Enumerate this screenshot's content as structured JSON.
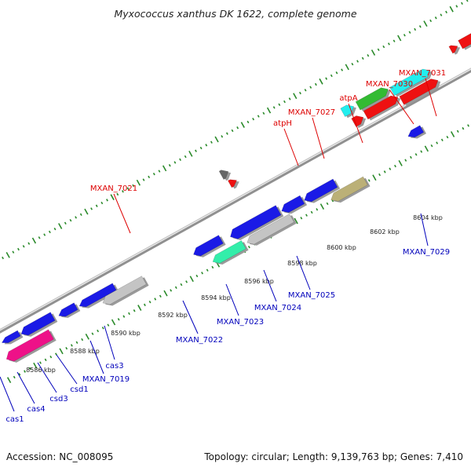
{
  "title": "Myxococcus xanthus DK 1622, complete genome",
  "footer": {
    "accession": "Accession: NC_008095",
    "summary": "Topology: circular; Length: 9,139,763 bp; Genes: 7,410"
  },
  "colors": {
    "backbone": "#909090",
    "ruler": "#2a8a2a",
    "label_forward": "#dd0000",
    "label_reverse": "#0000bb",
    "red_gene": "#ee1111",
    "blue_gene": "#1a1ae6",
    "cyan_gene": "#22eeee",
    "green_gene": "#33bb33",
    "grey_gene": "#c4c4c4",
    "dark_grey_gene": "#666666",
    "magenta_gene": "#ee1188",
    "aqua_gene": "#33eeaa",
    "khaki_gene": "#bbb077"
  },
  "scale": {
    "unit": "kbp",
    "ticks": [
      {
        "label": "8586 kbp"
      },
      {
        "label": "8588 kbp"
      },
      {
        "label": "8590 kbp"
      },
      {
        "label": "8592 kbp"
      },
      {
        "label": "8594 kbp"
      },
      {
        "label": "8596 kbp"
      },
      {
        "label": "8598 kbp"
      },
      {
        "label": "8600 kbp"
      },
      {
        "label": "8602 kbp"
      },
      {
        "label": "8604 kbp"
      }
    ]
  },
  "labels": {
    "forward": [
      "MXAN_7021",
      "atpH",
      "MXAN_7027",
      "atpA",
      "MXAN_7030",
      "MXAN_7031"
    ],
    "reverse": [
      "cas1",
      "cas4",
      "csd3",
      "csd1",
      "MXAN_7019",
      "cas3",
      "MXAN_7022",
      "MXAN_7023",
      "MXAN_7024",
      "MXAN_7025",
      "MXAN_7029"
    ]
  }
}
